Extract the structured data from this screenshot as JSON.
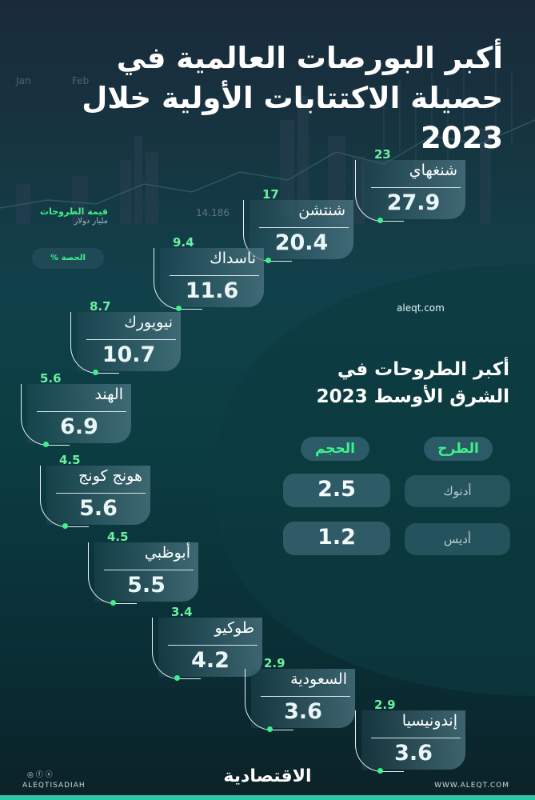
{
  "title": "أكبر البورصات العالمية في حصيلة الاكتتابات الأولية خلال 2023",
  "legend": {
    "value_label": "قيمة الطروحات",
    "value_unit": "مليار دولار",
    "share_label": "الحصة %"
  },
  "watermark": "aleqt.com",
  "exchanges": [
    {
      "name": "شنغهاي",
      "value": "27.9",
      "share": "23"
    },
    {
      "name": "شنتشن",
      "value": "20.4",
      "share": "17"
    },
    {
      "name": "ناسداك",
      "value": "11.6",
      "share": "9.4"
    },
    {
      "name": "نيويورك",
      "value": "10.7",
      "share": "8.7"
    },
    {
      "name": "الهند",
      "value": "6.9",
      "share": "5.6"
    },
    {
      "name": "هونج كونج",
      "value": "5.6",
      "share": "4.5"
    },
    {
      "name": "أبوظبي",
      "value": "5.5",
      "share": "4.5"
    },
    {
      "name": "طوكيو",
      "value": "4.2",
      "share": "3.4"
    },
    {
      "name": "السعودية",
      "value": "3.6",
      "share": "2.9"
    },
    {
      "name": "إندونيسيا",
      "value": "3.6",
      "share": "2.9"
    }
  ],
  "middle_east": {
    "title": "أكبر الطروحات في الشرق الأوسط 2023",
    "col_offering": "الطرح",
    "col_size": "الحجم",
    "rows": [
      {
        "offering": "أدنوك",
        "size": "2.5"
      },
      {
        "offering": "أديس",
        "size": "1.2"
      }
    ]
  },
  "footer": {
    "logo": "الاقتصادية",
    "handle": "ALEQTISADIAH",
    "site": "WWW.ALEQT.COM",
    "socials": "◎ ⓕ ⓧ"
  },
  "colors": {
    "accent": "#3df28a",
    "teal_strip": "#2fc6a8"
  }
}
